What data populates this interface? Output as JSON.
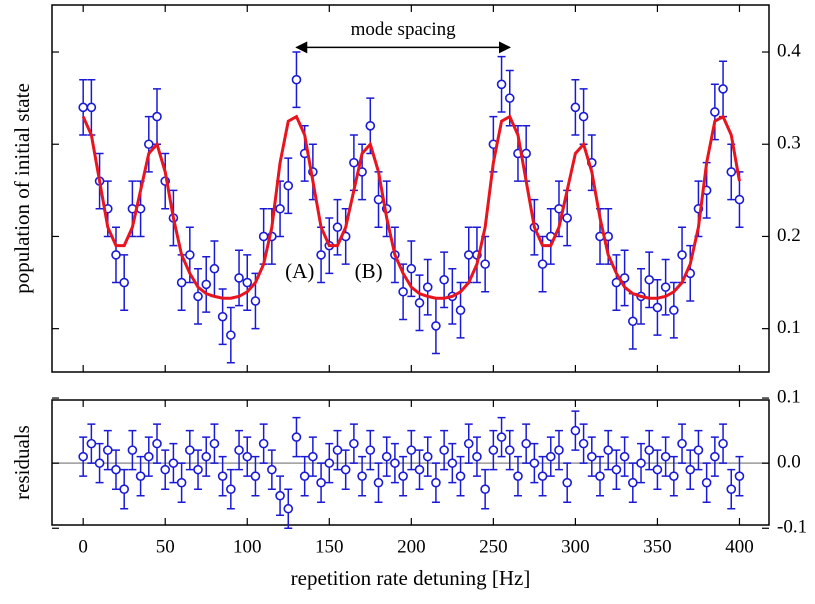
{
  "chart_data": [
    {
      "type": "scatter",
      "ylabel": "population of initial state",
      "x": [
        0,
        5,
        10,
        15,
        20,
        25,
        30,
        35,
        40,
        45,
        50,
        55,
        60,
        65,
        70,
        75,
        80,
        85,
        90,
        95,
        100,
        105,
        110,
        115,
        120,
        125,
        130,
        135,
        140,
        145,
        150,
        155,
        160,
        165,
        170,
        175,
        180,
        185,
        190,
        195,
        200,
        205,
        210,
        215,
        220,
        225,
        230,
        235,
        240,
        245,
        250,
        255,
        260,
        265,
        270,
        275,
        280,
        285,
        290,
        295,
        300,
        305,
        310,
        315,
        320,
        325,
        330,
        335,
        340,
        345,
        350,
        355,
        360,
        365,
        370,
        375,
        380,
        385,
        390,
        395,
        400
      ],
      "error": 0.03,
      "series": [
        {
          "type": "scatter",
          "color": "#1a1ad6",
          "values": [
            0.34,
            0.34,
            0.26,
            0.23,
            0.18,
            0.15,
            0.23,
            0.23,
            0.3,
            0.33,
            0.26,
            0.22,
            0.15,
            0.18,
            0.135,
            0.148,
            0.165,
            0.113,
            0.093,
            0.155,
            0.15,
            0.13,
            0.2,
            0.2,
            0.23,
            0.255,
            0.37,
            0.29,
            0.27,
            0.18,
            0.19,
            0.21,
            0.2,
            0.28,
            0.27,
            0.32,
            0.24,
            0.23,
            0.18,
            0.14,
            0.165,
            0.128,
            0.145,
            0.103,
            0.153,
            0.135,
            0.12,
            0.18,
            0.18,
            0.17,
            0.3,
            0.365,
            0.35,
            0.29,
            0.29,
            0.21,
            0.17,
            0.2,
            0.23,
            0.22,
            0.34,
            0.33,
            0.28,
            0.2,
            0.2,
            0.15,
            0.155,
            0.108,
            0.135,
            0.153,
            0.123,
            0.145,
            0.12,
            0.18,
            0.16,
            0.23,
            0.25,
            0.335,
            0.36,
            0.27,
            0.24
          ]
        },
        {
          "type": "line",
          "color": "#e8141e",
          "values": [
            0.33,
            0.31,
            0.26,
            0.21,
            0.19,
            0.19,
            0.21,
            0.25,
            0.29,
            0.3,
            0.27,
            0.22,
            0.18,
            0.16,
            0.145,
            0.138,
            0.135,
            0.133,
            0.133,
            0.135,
            0.14,
            0.15,
            0.17,
            0.21,
            0.28,
            0.325,
            0.33,
            0.31,
            0.26,
            0.21,
            0.19,
            0.19,
            0.21,
            0.25,
            0.29,
            0.3,
            0.27,
            0.22,
            0.18,
            0.16,
            0.145,
            0.138,
            0.135,
            0.133,
            0.133,
            0.135,
            0.14,
            0.15,
            0.17,
            0.21,
            0.28,
            0.325,
            0.33,
            0.31,
            0.26,
            0.21,
            0.19,
            0.19,
            0.21,
            0.25,
            0.29,
            0.3,
            0.27,
            0.22,
            0.18,
            0.16,
            0.145,
            0.138,
            0.135,
            0.133,
            0.133,
            0.135,
            0.14,
            0.15,
            0.17,
            0.21,
            0.28,
            0.325,
            0.33,
            0.31,
            0.26
          ]
        }
      ],
      "xlim": [
        -19,
        418
      ],
      "ylim": [
        0.053,
        0.451
      ],
      "xticks": [
        0,
        50,
        100,
        150,
        200,
        250,
        300,
        350,
        400
      ],
      "yticks": [
        0.1,
        0.2,
        0.3,
        0.4
      ],
      "annotations": [
        {
          "text": "mode spacing",
          "x": [
            130,
            260
          ],
          "y": 0.405
        },
        {
          "text": "(A)",
          "x": 132,
          "y": 0.16
        },
        {
          "text": "(B)",
          "x": 174,
          "y": 0.16
        }
      ]
    },
    {
      "type": "scatter",
      "ylabel": "residuals",
      "xlabel": "repetition rate detuning [Hz]",
      "x": [
        0,
        5,
        10,
        15,
        20,
        25,
        30,
        35,
        40,
        45,
        50,
        55,
        60,
        65,
        70,
        75,
        80,
        85,
        90,
        95,
        100,
        105,
        110,
        115,
        120,
        125,
        130,
        135,
        140,
        145,
        150,
        155,
        160,
        165,
        170,
        175,
        180,
        185,
        190,
        195,
        200,
        205,
        210,
        215,
        220,
        225,
        230,
        235,
        240,
        245,
        250,
        255,
        260,
        265,
        270,
        275,
        280,
        285,
        290,
        295,
        300,
        305,
        310,
        315,
        320,
        325,
        330,
        335,
        340,
        345,
        350,
        355,
        360,
        365,
        370,
        375,
        380,
        385,
        390,
        395,
        400
      ],
      "error": 0.03,
      "series": [
        {
          "type": "scatter",
          "color": "#1a1ad6",
          "values": [
            0.01,
            0.03,
            0.0,
            0.02,
            -0.01,
            -0.04,
            0.02,
            -0.02,
            0.01,
            0.03,
            -0.01,
            0.0,
            -0.03,
            0.02,
            -0.01,
            0.01,
            0.03,
            -0.02,
            -0.04,
            0.02,
            0.01,
            -0.02,
            0.03,
            -0.01,
            -0.05,
            -0.07,
            0.04,
            -0.02,
            0.01,
            -0.03,
            0.0,
            0.02,
            -0.01,
            0.03,
            -0.02,
            0.02,
            -0.03,
            0.01,
            0.0,
            -0.02,
            0.02,
            -0.01,
            0.01,
            -0.03,
            0.02,
            0.0,
            -0.02,
            0.03,
            0.01,
            -0.04,
            0.02,
            0.04,
            0.02,
            -0.02,
            0.03,
            0.0,
            -0.02,
            0.01,
            0.02,
            -0.03,
            0.05,
            0.03,
            0.01,
            -0.02,
            0.02,
            -0.01,
            0.01,
            -0.03,
            0.0,
            0.02,
            -0.01,
            0.01,
            -0.02,
            0.03,
            -0.01,
            0.02,
            -0.03,
            0.01,
            0.03,
            -0.04,
            -0.02
          ]
        }
      ],
      "zero_line": 0,
      "xlim": [
        -19,
        418
      ],
      "ylim": [
        -0.095,
        0.097
      ],
      "xticks": [
        0,
        50,
        100,
        150,
        200,
        250,
        300,
        350,
        400
      ],
      "yticks": [
        0.1,
        {
          "value": 0,
          "label": "0.0"
        },
        -0.1
      ]
    }
  ]
}
